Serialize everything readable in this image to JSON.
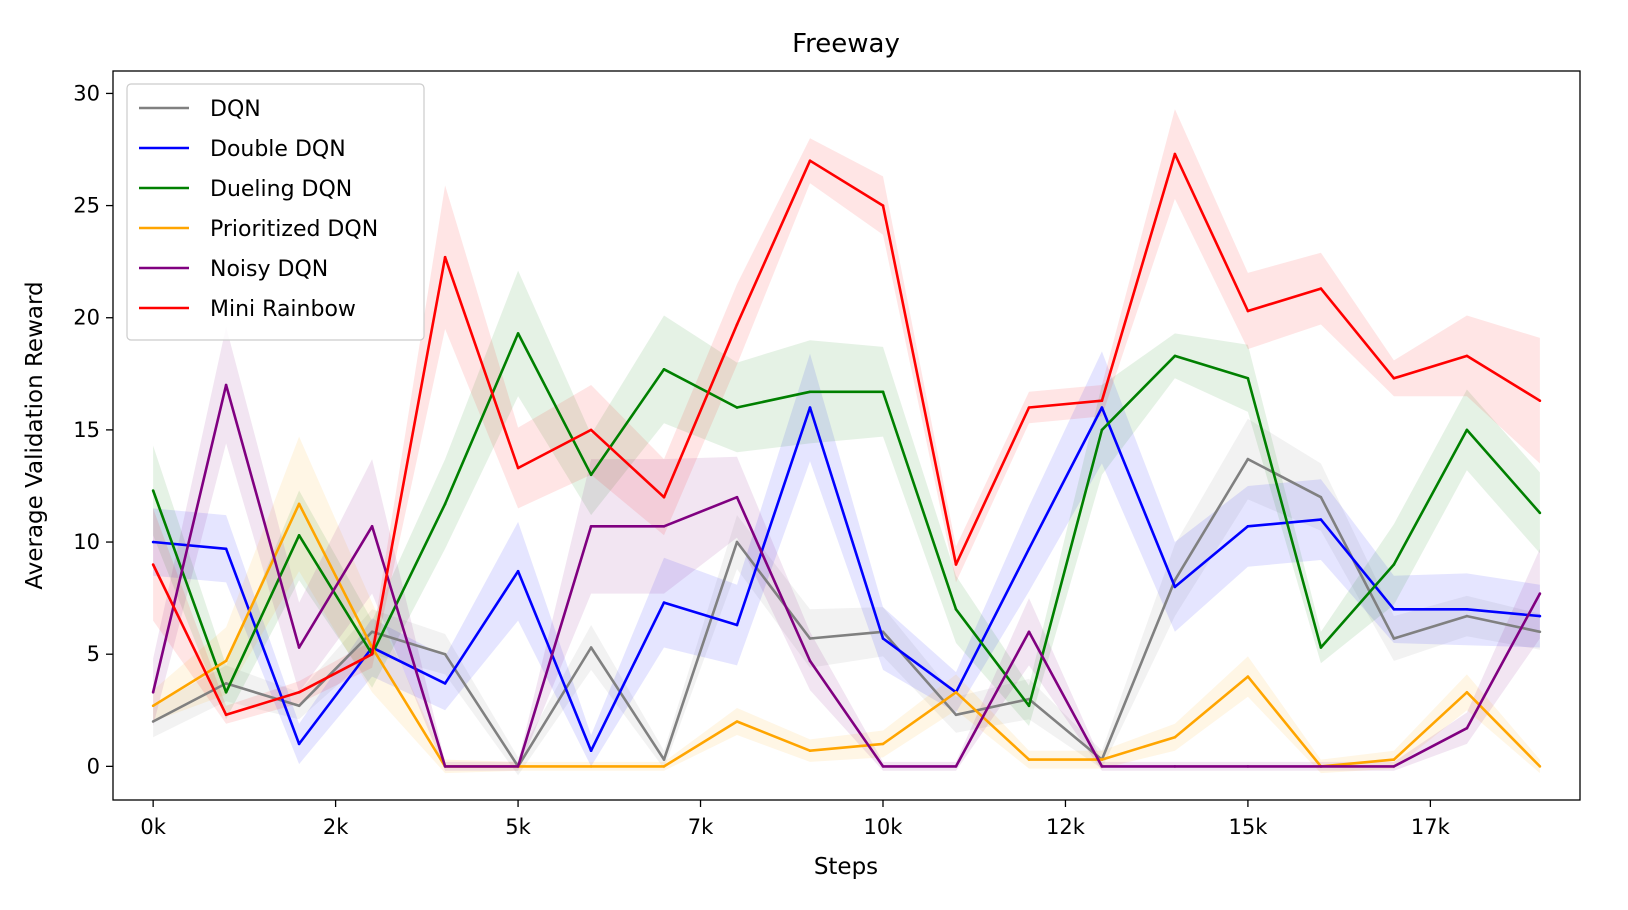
{
  "chart_data": {
    "type": "line",
    "title": "Freeway",
    "xlabel": "Steps",
    "ylabel": "Average Validation Reward",
    "xlim": [
      -0.55,
      19.55
    ],
    "ylim": [
      -1.5,
      31.0
    ],
    "x_ticks": [
      {
        "pos": 0,
        "label": "0k"
      },
      {
        "pos": 2.5,
        "label": "2k"
      },
      {
        "pos": 5,
        "label": "5k"
      },
      {
        "pos": 7.5,
        "label": "7k"
      },
      {
        "pos": 10,
        "label": "10k"
      },
      {
        "pos": 12.5,
        "label": "12k"
      },
      {
        "pos": 15,
        "label": "15k"
      },
      {
        "pos": 17.5,
        "label": "17k"
      }
    ],
    "y_ticks": [
      0,
      5,
      10,
      15,
      20,
      25,
      30
    ],
    "x": [
      0,
      1,
      2,
      3,
      4,
      5,
      6,
      7,
      8,
      9,
      10,
      11,
      12,
      13,
      14,
      15,
      16,
      17,
      18,
      19
    ],
    "legend_position": "upper left",
    "grid": false,
    "series": [
      {
        "name": "DQN",
        "color": "#808080",
        "values": [
          2.0,
          3.7,
          2.7,
          6.0,
          5.0,
          0.0,
          5.3,
          0.3,
          10.0,
          5.7,
          6.0,
          2.3,
          3.0,
          0.3,
          8.3,
          13.7,
          12.0,
          5.7,
          6.7,
          6.0
        ],
        "band": [
          0.7,
          0.8,
          0.6,
          1.0,
          0.9,
          0.4,
          1.0,
          0.4,
          1.2,
          1.3,
          1.1,
          0.8,
          0.9,
          0.4,
          1.6,
          1.8,
          1.5,
          1.0,
          0.9,
          0.8
        ]
      },
      {
        "name": "Double DQN",
        "color": "#0000ff",
        "values": [
          10.0,
          9.7,
          1.0,
          5.3,
          3.7,
          8.7,
          0.7,
          7.3,
          6.3,
          16.0,
          5.7,
          3.3,
          9.7,
          16.0,
          8.0,
          10.7,
          11.0,
          7.0,
          7.0,
          6.7
        ],
        "band": [
          1.5,
          1.5,
          0.9,
          1.3,
          1.2,
          2.2,
          0.7,
          2.0,
          1.8,
          2.4,
          1.4,
          0.9,
          1.9,
          2.5,
          2.0,
          1.8,
          1.8,
          1.5,
          1.6,
          1.4
        ]
      },
      {
        "name": "Dueling DQN",
        "color": "#008000",
        "values": [
          12.3,
          3.3,
          10.3,
          5.0,
          11.7,
          19.3,
          13.0,
          17.7,
          16.0,
          16.7,
          16.7,
          7.0,
          2.7,
          15.0,
          18.3,
          17.3,
          5.3,
          9.0,
          15.0,
          11.3
        ],
        "band": [
          2.0,
          1.2,
          2.0,
          1.5,
          2.0,
          2.8,
          1.8,
          2.4,
          2.0,
          2.3,
          2.0,
          1.5,
          0.9,
          2.0,
          1.0,
          1.5,
          0.7,
          1.8,
          1.8,
          1.8
        ]
      },
      {
        "name": "Prioritized DQN",
        "color": "#ffa500",
        "values": [
          2.7,
          4.7,
          11.7,
          5.3,
          0.0,
          0.0,
          0.0,
          0.0,
          2.0,
          0.7,
          1.0,
          3.3,
          0.3,
          0.3,
          1.3,
          4.0,
          0.0,
          0.3,
          3.3,
          0.0
        ],
        "band": [
          0.7,
          1.5,
          3.0,
          2.0,
          0.3,
          0.2,
          0.2,
          0.2,
          0.6,
          0.5,
          0.6,
          0.8,
          0.4,
          0.4,
          0.6,
          0.9,
          0.3,
          0.4,
          0.8,
          0.3
        ]
      },
      {
        "name": "Noisy DQN",
        "color": "#800080",
        "values": [
          3.3,
          17.0,
          5.3,
          10.7,
          0.0,
          0.0,
          10.7,
          10.7,
          12.0,
          4.7,
          0.0,
          0.0,
          6.0,
          0.0,
          0.0,
          0.0,
          0.0,
          0.0,
          1.7,
          7.7
        ],
        "band": [
          1.5,
          2.6,
          2.0,
          3.0,
          0.2,
          0.2,
          3.0,
          3.0,
          1.8,
          1.3,
          0.2,
          0.2,
          1.5,
          0.2,
          0.2,
          0.2,
          0.2,
          0.2,
          0.7,
          2.0
        ]
      },
      {
        "name": "Mini Rainbow",
        "color": "#ff0000",
        "values": [
          9.0,
          2.3,
          3.3,
          5.0,
          22.7,
          13.3,
          15.0,
          12.0,
          19.7,
          27.0,
          25.0,
          9.0,
          16.0,
          16.3,
          27.3,
          20.3,
          21.3,
          17.3,
          18.3,
          16.3
        ],
        "band": [
          2.5,
          0.4,
          0.5,
          0.6,
          3.2,
          1.8,
          2.0,
          1.7,
          1.8,
          1.0,
          1.3,
          0.8,
          0.7,
          0.7,
          2.0,
          1.7,
          1.6,
          0.8,
          1.8,
          2.8
        ]
      }
    ]
  }
}
